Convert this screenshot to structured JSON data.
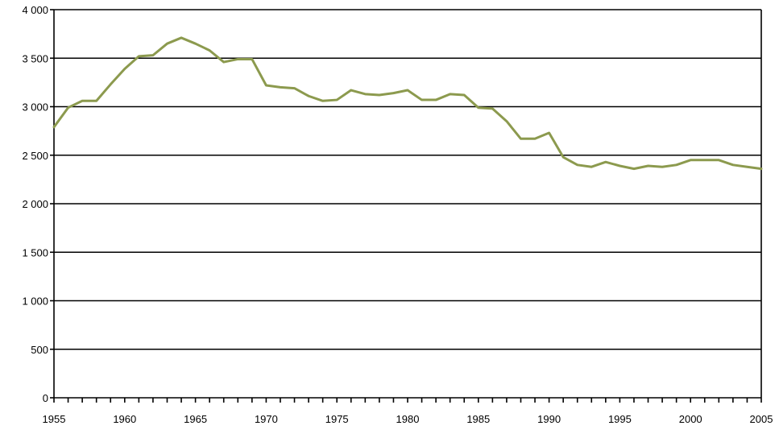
{
  "chart_data": {
    "type": "line",
    "title": "",
    "xlabel": "",
    "ylabel": "",
    "xlim": [
      1955,
      2005
    ],
    "ylim": [
      0,
      4000
    ],
    "grid": "horizontal",
    "legend": "none",
    "line_color": "#8C9A4E",
    "y_ticks": [
      0,
      500,
      1000,
      1500,
      2000,
      2500,
      3000,
      3500,
      4000
    ],
    "y_tick_labels": [
      "0",
      "500",
      "1 000",
      "1 500",
      "2 000",
      "2 500",
      "3 000",
      "3 500",
      "4 000"
    ],
    "x_tick_labels": [
      "1955",
      "1960",
      "1965",
      "1970",
      "1975",
      "1980",
      "1985",
      "1990",
      "1995",
      "2000",
      "2005"
    ],
    "x": [
      1955,
      1956,
      1957,
      1958,
      1959,
      1960,
      1961,
      1962,
      1963,
      1964,
      1965,
      1966,
      1967,
      1968,
      1969,
      1970,
      1971,
      1972,
      1973,
      1974,
      1975,
      1976,
      1977,
      1978,
      1979,
      1980,
      1981,
      1982,
      1983,
      1984,
      1985,
      1986,
      1987,
      1988,
      1989,
      1990,
      1991,
      1992,
      1993,
      1994,
      1995,
      1996,
      1997,
      1998,
      1999,
      2000,
      2001,
      2002,
      2003,
      2004,
      2005
    ],
    "series": [
      {
        "values": [
          2790,
          2990,
          3060,
          3060,
          3230,
          3390,
          3520,
          3530,
          3650,
          3710,
          3650,
          3580,
          3460,
          3490,
          3490,
          3220,
          3200,
          3190,
          3110,
          3060,
          3070,
          3170,
          3130,
          3120,
          3140,
          3170,
          3070,
          3070,
          3130,
          3120,
          2990,
          2980,
          2850,
          2670,
          2670,
          2730,
          2480,
          2400,
          2380,
          2430,
          2390,
          2360,
          2390,
          2380,
          2400,
          2450,
          2450,
          2450,
          2400,
          2380,
          2360
        ]
      }
    ]
  }
}
